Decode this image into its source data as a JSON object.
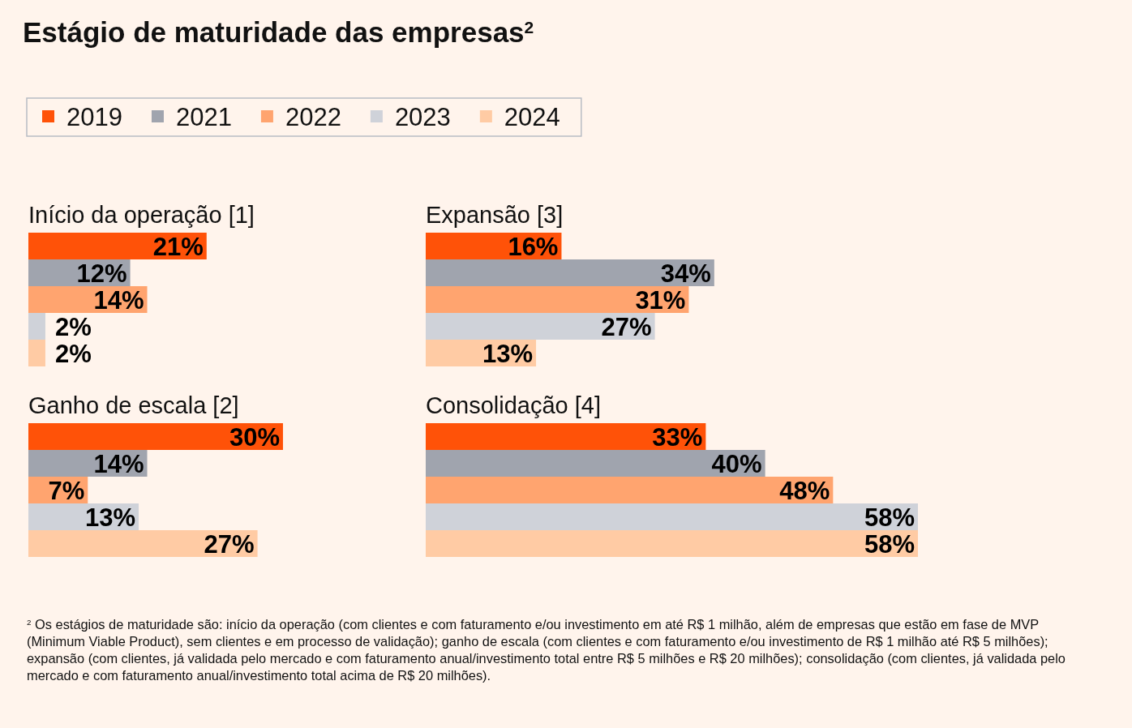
{
  "chart_data": [
    {
      "type": "bar",
      "orientation": "horizontal",
      "title": "Estágio de maturidade das empresas$^{2}$",
      "subtitle": "Início da operação [1]",
      "categories": [
        null
      ],
      "legend": "top",
      "series": [
        {
          "name": "2019",
          "color": "#ff5208",
          "values": [
            21
          ],
          "value_labels": [
            "21%"
          ]
        },
        {
          "name": "2021",
          "color": "#a0a4ae",
          "values": [
            12
          ],
          "value_labels": [
            "12%"
          ]
        },
        {
          "name": "2022",
          "color": "#ffa46f",
          "values": [
            14
          ],
          "value_labels": [
            "14%"
          ]
        },
        {
          "name": "2023",
          "color": "#cfd2d9",
          "values": [
            2
          ],
          "value_labels": [
            "2%"
          ]
        },
        {
          "name": "2024",
          "color": "#ffcba4",
          "values": [
            2
          ],
          "value_labels": [
            "2%"
          ]
        }
      ],
      "annotations": [
        "$^{2}$ Os estágios de maturidade são: início da operação (com clientes e com faturamento e/ou investimento em até R$ 1 milhão, além de empresas que estão em fase de MVP (Minimum Viable Product), sem clientes e em processo de validação); ganho de escala (com clientes e com faturamento e/ou investimento de R$ 1 milhão até R$ 5 milhões); expansão (com clientes, já validada pelo mercado e com faturamento anual/investimento total entre R$ 5 milhões e R$ 20 milhões); consolidação (com clientes, já validada pelo mercado e com faturamento anual/investimento total acima de R$ 20 milhões)."
      ]
    },
    {
      "type": "bar",
      "orientation": "horizontal",
      "title": "Expansão [3]",
      "categories": [
        null
      ],
      "series": [
        {
          "color": "#ff5208",
          "values": [
            16
          ],
          "value_labels": [
            "16%"
          ]
        },
        {
          "color": "#a0a4ae",
          "values": [
            34
          ],
          "value_labels": [
            "34%"
          ]
        },
        {
          "color": "#ffa46f",
          "values": [
            31
          ],
          "value_labels": [
            "31%"
          ]
        },
        {
          "color": "#cfd2d9",
          "values": [
            27
          ],
          "value_labels": [
            "27%"
          ]
        },
        {
          "color": "#ffcba4",
          "values": [
            13
          ],
          "value_labels": [
            "13%"
          ]
        }
      ]
    },
    {
      "type": "bar",
      "orientation": "horizontal",
      "title": "Ganho de escala [2]",
      "categories": [
        null
      ],
      "series": [
        {
          "color": "#ff5208",
          "values": [
            30
          ],
          "value_labels": [
            "30%"
          ]
        },
        {
          "color": "#a0a4ae",
          "values": [
            14
          ],
          "value_labels": [
            "14%"
          ]
        },
        {
          "color": "#ffa46f",
          "values": [
            7
          ],
          "value_labels": [
            "7%"
          ]
        },
        {
          "color": "#cfd2d9",
          "values": [
            13
          ],
          "value_labels": [
            "13%"
          ]
        },
        {
          "color": "#ffcba4",
          "values": [
            27
          ],
          "value_labels": [
            "27%"
          ]
        }
      ]
    },
    {
      "type": "bar",
      "orientation": "horizontal",
      "title": "Consolidação [4]",
      "categories": [
        null
      ],
      "series": [
        {
          "color": "#ff5208",
          "values": [
            33
          ],
          "value_labels": [
            "33%"
          ]
        },
        {
          "color": "#a0a4ae",
          "values": [
            40
          ],
          "value_labels": [
            "40%"
          ]
        },
        {
          "color": "#ffa46f",
          "values": [
            48
          ],
          "value_labels": [
            "48%"
          ]
        },
        {
          "color": "#cfd2d9",
          "values": [
            58
          ],
          "value_labels": [
            "58%"
          ]
        },
        {
          "color": "#ffcba4",
          "values": [
            58
          ],
          "value_labels": [
            "58%"
          ]
        }
      ]
    }
  ]
}
